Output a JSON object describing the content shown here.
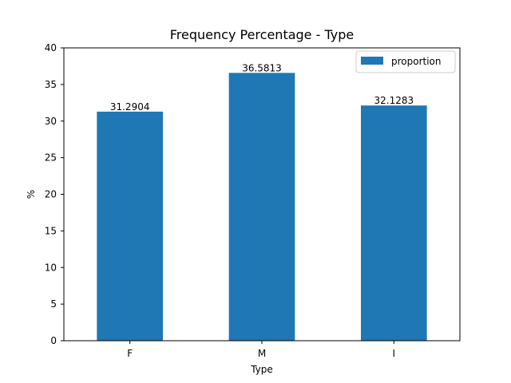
{
  "chart_data": {
    "type": "bar",
    "title": "Frequency Percentage - Type",
    "xlabel": "Type",
    "ylabel": "%",
    "categories": [
      "F",
      "M",
      "I"
    ],
    "series": [
      {
        "name": "proportion",
        "values": [
          31.2904,
          36.5813,
          32.1283
        ],
        "color": "#1f77b4"
      }
    ],
    "data_labels": [
      "31.2904",
      "36.5813",
      "32.1283"
    ],
    "ylim": [
      0,
      40
    ],
    "yticks": [
      0,
      5,
      10,
      15,
      20,
      25,
      30,
      35,
      40
    ],
    "grid": false,
    "legend": "top-right"
  }
}
